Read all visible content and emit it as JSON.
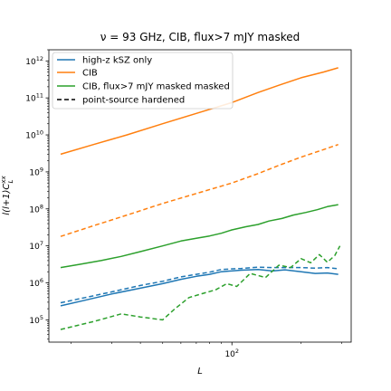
{
  "chart_data": {
    "type": "line",
    "title": "ν = 93 GHz, CIB, flux>7 mJY masked",
    "xlabel": "L",
    "ylabel": "l(l+1)C_L^xx",
    "xscale": "log",
    "yscale": "log",
    "xlim": [
      16,
      330
    ],
    "ylim": [
      25000,
      2000000000000
    ],
    "x_ticks": [
      {
        "base": "10",
        "exp": "2",
        "value": 100
      }
    ],
    "y_ticks": [
      {
        "base": "10",
        "exp": "5",
        "value": 100000
      },
      {
        "base": "10",
        "exp": "6",
        "value": 1000000
      },
      {
        "base": "10",
        "exp": "7",
        "value": 10000000
      },
      {
        "base": "10",
        "exp": "8",
        "value": 100000000
      },
      {
        "base": "10",
        "exp": "9",
        "value": 1000000000
      },
      {
        "base": "10",
        "exp": "10",
        "value": 10000000000
      },
      {
        "base": "10",
        "exp": "11",
        "value": 100000000000
      },
      {
        "base": "10",
        "exp": "12",
        "value": 1000000000000
      }
    ],
    "grid": false,
    "legend_position": "top-left",
    "legend": [
      {
        "label": "high-z kSZ only",
        "color": "#1f77b4",
        "dash": "solid"
      },
      {
        "label": "CIB",
        "color": "#ff7f0e",
        "dash": "solid"
      },
      {
        "label": "CIB, flux>7 mJY masked masked",
        "color": "#2ca02c",
        "dash": "solid"
      },
      {
        "label": "point-source hardened",
        "color": "#000000",
        "dash": "dashed"
      }
    ],
    "series": [
      {
        "color": "#1f77b4",
        "dash": "solid",
        "points": [
          [
            18,
            240000
          ],
          [
            23,
            340000
          ],
          [
            30,
            500000
          ],
          [
            40,
            720000
          ],
          [
            50,
            950000
          ],
          [
            60,
            1250000
          ],
          [
            70,
            1500000
          ],
          [
            80,
            1700000
          ],
          [
            90,
            2000000
          ],
          [
            110,
            2200000
          ],
          [
            130,
            2300000
          ],
          [
            150,
            2100000
          ],
          [
            170,
            2250000
          ],
          [
            200,
            2000000
          ],
          [
            230,
            1800000
          ],
          [
            260,
            1850000
          ],
          [
            290,
            1700000
          ]
        ]
      },
      {
        "color": "#1f77b4",
        "dash": "dashed",
        "points": [
          [
            18,
            290000
          ],
          [
            23,
            400000
          ],
          [
            30,
            570000
          ],
          [
            40,
            850000
          ],
          [
            50,
            1100000
          ],
          [
            60,
            1450000
          ],
          [
            70,
            1700000
          ],
          [
            80,
            1950000
          ],
          [
            90,
            2300000
          ],
          [
            110,
            2450000
          ],
          [
            130,
            2650000
          ],
          [
            150,
            2600000
          ],
          [
            170,
            2600000
          ],
          [
            200,
            2600000
          ],
          [
            230,
            2500000
          ],
          [
            260,
            2600000
          ],
          [
            290,
            2400000
          ]
        ]
      },
      {
        "color": "#ff7f0e",
        "dash": "solid",
        "points": [
          [
            18,
            3000000000
          ],
          [
            25,
            5500000000
          ],
          [
            35,
            10000000000
          ],
          [
            50,
            20000000000
          ],
          [
            70,
            38000000000
          ],
          [
            100,
            75000000000
          ],
          [
            130,
            140000000000
          ],
          [
            160,
            220000000000
          ],
          [
            200,
            350000000000
          ],
          [
            250,
            500000000000
          ],
          [
            290,
            650000000000
          ]
        ]
      },
      {
        "color": "#ff7f0e",
        "dash": "dashed",
        "points": [
          [
            18,
            18000000
          ],
          [
            25,
            35000000
          ],
          [
            35,
            68000000
          ],
          [
            50,
            140000000
          ],
          [
            70,
            260000000
          ],
          [
            100,
            500000000
          ],
          [
            130,
            900000000
          ],
          [
            160,
            1500000000
          ],
          [
            200,
            2500000000
          ],
          [
            250,
            4000000000
          ],
          [
            290,
            5500000000
          ]
        ]
      },
      {
        "color": "#2ca02c",
        "dash": "solid",
        "points": [
          [
            18,
            2600000
          ],
          [
            22,
            3200000
          ],
          [
            27,
            4000000
          ],
          [
            33,
            5200000
          ],
          [
            40,
            7000000
          ],
          [
            50,
            10000000
          ],
          [
            60,
            13500000
          ],
          [
            70,
            16000000
          ],
          [
            80,
            18500000
          ],
          [
            90,
            22000000
          ],
          [
            100,
            27000000
          ],
          [
            115,
            33000000
          ],
          [
            130,
            38000000
          ],
          [
            145,
            47000000
          ],
          [
            165,
            55000000
          ],
          [
            185,
            68000000
          ],
          [
            210,
            80000000
          ],
          [
            235,
            95000000
          ],
          [
            260,
            115000000
          ],
          [
            290,
            130000000
          ]
        ]
      },
      {
        "color": "#2ca02c",
        "dash": "dashed",
        "points": [
          [
            18,
            55000
          ],
          [
            25,
            90000
          ],
          [
            33,
            145000
          ],
          [
            40,
            120000
          ],
          [
            50,
            100000
          ],
          [
            56,
            190000
          ],
          [
            65,
            400000
          ],
          [
            75,
            520000
          ],
          [
            85,
            650000
          ],
          [
            95,
            950000
          ],
          [
            105,
            800000
          ],
          [
            120,
            1800000
          ],
          [
            140,
            1400000
          ],
          [
            160,
            3000000
          ],
          [
            180,
            2600000
          ],
          [
            200,
            4500000
          ],
          [
            220,
            3500000
          ],
          [
            240,
            5800000
          ],
          [
            260,
            3600000
          ],
          [
            280,
            5500000
          ],
          [
            295,
            10000000
          ]
        ]
      }
    ]
  }
}
